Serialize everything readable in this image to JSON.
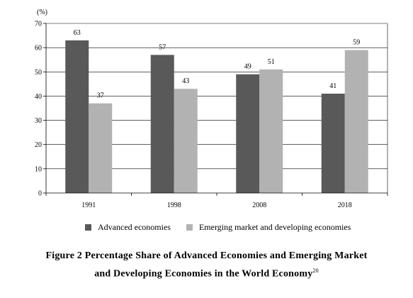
{
  "chart_data": {
    "type": "bar",
    "unit_label": "(%)",
    "categories": [
      "1991",
      "1998",
      "2008",
      "2018"
    ],
    "series": [
      {
        "name": "Advanced economies",
        "values": [
          63,
          57,
          49,
          41
        ],
        "color": "#595959"
      },
      {
        "name": "Emerging market and developing economies",
        "values": [
          37,
          43,
          51,
          59
        ],
        "color": "#b2b2b2"
      }
    ],
    "ylim": [
      0,
      70
    ],
    "yticks": [
      0,
      10,
      20,
      30,
      40,
      50,
      60,
      70
    ],
    "grid": true,
    "legend_position": "bottom"
  },
  "caption": {
    "line1": "Figure 2 Percentage Share of Advanced Economies and Emerging Market",
    "line2": "and Developing Economies in the World Economy",
    "footnote": "20"
  }
}
